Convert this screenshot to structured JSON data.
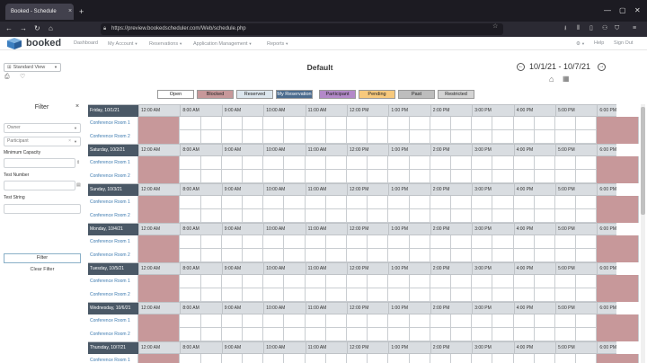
{
  "browser": {
    "tab_title": "Booked - Schedule",
    "tab_close": "×",
    "new_tab": "+",
    "url": "https://preview.bookedscheduler.com/Web/schedule.php",
    "win_min": "—",
    "win_max": "▢",
    "win_close": "✕"
  },
  "app": {
    "logo": "booked",
    "nav": [
      {
        "label": "Dashboard",
        "caret": false
      },
      {
        "label": "My Account",
        "caret": true
      },
      {
        "label": "Reservations",
        "caret": true
      },
      {
        "label": "Application Management",
        "caret": true
      },
      {
        "label": "Reports",
        "caret": true
      }
    ],
    "right_nav": {
      "help": "Help",
      "signout": "Sign Out"
    }
  },
  "schedule": {
    "view": "Standard View",
    "title": "Default",
    "date_range": "10/1/21 - 10/7/21"
  },
  "legend": [
    {
      "label": "Open",
      "bg": "#ffffff"
    },
    {
      "label": "Blocked",
      "bg": "#c7989a"
    },
    {
      "label": "Reserved",
      "bg": "#dce6ee"
    },
    {
      "label": "My Reservation",
      "bg": "#4a6b8e",
      "fg": "#ffffff"
    },
    {
      "label": "Participant",
      "bg": "#b389c9"
    },
    {
      "label": "Pending",
      "bg": "#f7c97d"
    },
    {
      "label": "Past",
      "bg": "#bdbdbd"
    },
    {
      "label": "Restricted",
      "bg": "#d3d3d3"
    }
  ],
  "filter": {
    "title": "Filter",
    "close": "×",
    "owner_placeholder": "Owner",
    "participant_placeholder": "Participant",
    "min_capacity_label": "Minimum Capacity",
    "test_number_label": "Test Number",
    "test_string_label": "Test String",
    "filter_button": "Filter",
    "clear_filter": "Clear Filter"
  },
  "times": [
    "12:00 AM",
    "8:00 AM",
    "9:00 AM",
    "10:00 AM",
    "11:00 AM",
    "12:00 PM",
    "1:00 PM",
    "2:00 PM",
    "3:00 PM",
    "4:00 PM",
    "5:00 PM",
    "6:00 PM"
  ],
  "days": [
    {
      "label": "Friday, 10/1/21",
      "rooms": [
        "Conference Room 1",
        "Conference Room 2"
      ]
    },
    {
      "label": "Saturday, 10/2/21",
      "rooms": [
        "Conference Room 1",
        "Conference Room 2"
      ]
    },
    {
      "label": "Sunday, 10/3/21",
      "rooms": [
        "Conference Room 1",
        "Conference Room 2"
      ]
    },
    {
      "label": "Monday, 10/4/21",
      "rooms": [
        "Conference Room 1",
        "Conference Room 2"
      ]
    },
    {
      "label": "Tuesday, 10/5/21",
      "rooms": [
        "Conference Room 1",
        "Conference Room 2"
      ]
    },
    {
      "label": "Wednesday, 10/6/21",
      "rooms": [
        "Conference Room 1",
        "Conference Room 2"
      ]
    },
    {
      "label": "Thursday, 10/7/21",
      "rooms": [
        "Conference Room 1"
      ]
    }
  ]
}
